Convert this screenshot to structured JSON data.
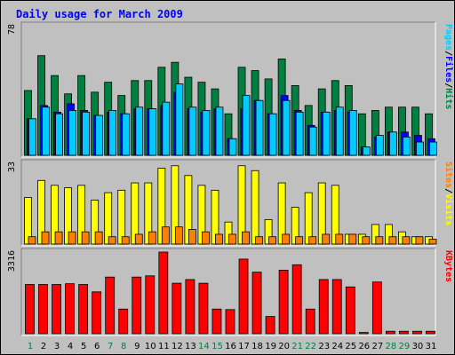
{
  "chart_data": {
    "type": "bar",
    "title": "Daily usage for March 2009",
    "days": [
      "1",
      "2",
      "3",
      "4",
      "5",
      "6",
      "7",
      "8",
      "9",
      "10",
      "11",
      "12",
      "13",
      "14",
      "15",
      "16",
      "17",
      "18",
      "19",
      "20",
      "21",
      "22",
      "23",
      "24",
      "25",
      "26",
      "27",
      "28",
      "29",
      "30",
      "31"
    ],
    "weekend_days": [
      "1",
      "7",
      "8",
      "14",
      "15",
      "21",
      "22",
      "28",
      "29"
    ],
    "colors": {
      "hits": "#00ccff",
      "files": "#0000ff",
      "pages": "#008040",
      "visits": "#ff8000",
      "sites": "#ffff00",
      "kbytes": "#ff0000",
      "weekday_label": "#000000",
      "weekend_label": "#008040"
    },
    "panels": [
      {
        "id": "hits-files-pages",
        "max_label": "78",
        "legend": [
          {
            "text": "Pages",
            "color": "#00ccff"
          },
          {
            "text": "/",
            "color": "#000000"
          },
          {
            "text": "Files",
            "color": "#0000ff"
          },
          {
            "text": "/",
            "color": "#000000"
          },
          {
            "text": "Hits",
            "color": "#008040"
          }
        ],
        "ylim": [
          0,
          78
        ],
        "series": [
          {
            "name": "Hits",
            "color": "#008040",
            "values": [
              39,
              60,
              48,
              37,
              48,
              38,
              44,
              36,
              45,
              45,
              53,
              56,
              47,
              44,
              40,
              25,
              53,
              51,
              46,
              58,
              42,
              30,
              40,
              45,
              42,
              25,
              27,
              29,
              29,
              29,
              25
            ]
          },
          {
            "name": "Files",
            "color": "#0000ff",
            "values": [
              22,
              30,
              26,
              31,
              27,
              24,
              26,
              25,
              28,
              28,
              30,
              38,
              28,
              26,
              28,
              10,
              28,
              33,
              25,
              36,
              27,
              18,
              26,
              27,
              26,
              5,
              11,
              14,
              14,
              12,
              10
            ]
          },
          {
            "name": "Pages",
            "color": "#00ccff",
            "values": [
              22,
              29,
              25,
              27,
              26,
              24,
              27,
              25,
              29,
              28,
              32,
              43,
              29,
              27,
              29,
              10,
              36,
              33,
              25,
              33,
              26,
              17,
              26,
              29,
              27,
              5,
              12,
              14,
              11,
              8,
              8
            ]
          }
        ]
      },
      {
        "id": "visits-sites",
        "max_label": "33",
        "legend": [
          {
            "text": "Sites",
            "color": "#ff8000"
          },
          {
            "text": "/",
            "color": "#000000"
          },
          {
            "text": "Visits",
            "color": "#ffff00"
          }
        ],
        "ylim": [
          0,
          33
        ],
        "series": [
          {
            "name": "Visits",
            "color": "#ffff00",
            "values": [
              19,
              26,
              24,
              23,
              24,
              18,
              21,
              22,
              25,
              25,
              31,
              32,
              28,
              24,
              22,
              9,
              32,
              30,
              10,
              25,
              15,
              21,
              25,
              24,
              4,
              4,
              8,
              8,
              5,
              3,
              3
            ]
          },
          {
            "name": "Sites",
            "color": "#ff8000",
            "values": [
              3,
              5,
              5,
              5,
              5,
              5,
              3,
              3,
              4,
              5,
              7,
              7,
              6,
              5,
              4,
              4,
              5,
              3,
              3,
              4,
              3,
              3,
              4,
              4,
              4,
              3,
              3,
              3,
              3,
              3,
              2
            ]
          }
        ]
      },
      {
        "id": "kbytes",
        "max_label": "3316",
        "legend": [
          {
            "text": "KBytes",
            "color": "#ff0000"
          }
        ],
        "ylim": [
          0,
          3316
        ],
        "series": [
          {
            "name": "KBytes",
            "color": "#ff0000",
            "values": [
              2000,
              2000,
              2000,
              2030,
              2000,
              1700,
              2300,
              1000,
              2300,
              2350,
              3316,
              2050,
              2200,
              2050,
              1000,
              980,
              3030,
              2500,
              700,
              2580,
              2800,
              1000,
              2200,
              2200,
              1900,
              50,
              2100,
              100,
              100,
              100,
              100
            ]
          }
        ]
      }
    ]
  }
}
